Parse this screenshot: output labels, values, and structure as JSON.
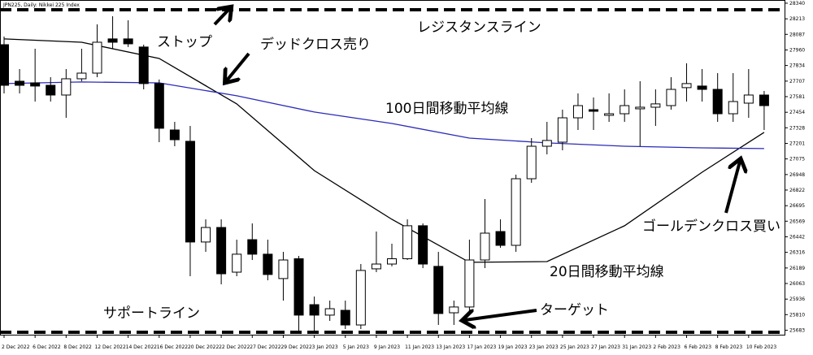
{
  "chart_data": {
    "type": "candlestick",
    "title": "JPN225, Daily: Nikkei 225 Index",
    "categories": [
      "2 Dec 2022",
      null,
      "6 Dec 2022",
      null,
      "8 Dec 2022",
      null,
      "12 Dec 2022",
      null,
      "14 Dec 2022",
      null,
      "16 Dec 2022",
      null,
      "20 Dec 2022",
      null,
      "22 Dec 2022",
      null,
      "27 Dec 2022",
      null,
      "29 Dec 2022",
      null,
      "3 Jan 2023",
      null,
      "5 Jan 2023",
      null,
      "9 Jan 2023",
      null,
      "11 Jan 2023",
      null,
      "13 Jan 2023",
      null,
      "17 Jan 2023",
      null,
      "19 Jan 2023",
      null,
      "23 Jan 2023",
      null,
      "25 Jan 2023",
      null,
      "27 Jan 2023",
      null,
      "31 Jan 2023",
      null,
      "2 Feb 2023",
      null,
      "6 Feb 2023",
      null,
      "8 Feb 2023",
      null,
      "10 Feb 2023",
      null
    ],
    "open": [
      28003,
      27706,
      27693,
      27673,
      27594,
      27726,
      27772,
      28050,
      28050,
      27984,
      27687,
      27310,
      27218,
      26400,
      26518,
      26155,
      26419,
      26301,
      26103,
      26264,
      25891,
      25806,
      25845,
      25726,
      26182,
      26221,
      26264,
      26532,
      26202,
      25825,
      25872,
      26254,
      26485,
      26373,
      26914,
      27178,
      27211,
      27409,
      27475,
      27429,
      27442,
      27482,
      27495,
      27508,
      27654,
      27667,
      27640,
      27442,
      27528,
      27594
    ],
    "high": [
      28069,
      27805,
      27970,
      27739,
      27805,
      27970,
      28168,
      28234,
      28201,
      28003,
      27720,
      27376,
      27343,
      26584,
      26584,
      26419,
      26551,
      26419,
      26320,
      26287,
      25957,
      25924,
      25924,
      26221,
      26485,
      26386,
      26584,
      26551,
      26320,
      25924,
      26419,
      26749,
      26584,
      26947,
      27244,
      27376,
      27475,
      27607,
      27574,
      27607,
      27640,
      27706,
      27640,
      27739,
      27852,
      27805,
      27772,
      27772,
      27805,
      27627
    ],
    "low": [
      27607,
      27607,
      27541,
      27541,
      27409,
      27706,
      27739,
      27970,
      27984,
      27640,
      27211,
      27178,
      26122,
      26320,
      26056,
      26122,
      26254,
      26089,
      25924,
      25673,
      25660,
      25759,
      25693,
      25693,
      26155,
      26202,
      26254,
      26188,
      25726,
      25726,
      25825,
      26188,
      26353,
      26320,
      26881,
      27112,
      27145,
      27310,
      27310,
      27376,
      27376,
      27178,
      27343,
      27475,
      27541,
      27541,
      27376,
      27376,
      27409,
      27310
    ],
    "close": [
      27673,
      27673,
      27667,
      27594,
      27726,
      27772,
      28023,
      28023,
      28010,
      27687,
      27324,
      27231,
      26400,
      26518,
      26142,
      26301,
      26301,
      26136,
      26254,
      25806,
      25806,
      25858,
      25726,
      26169,
      26221,
      26264,
      26532,
      26221,
      25819,
      25872,
      26254,
      26472,
      26373,
      26914,
      27178,
      27225,
      27409,
      27508,
      27462,
      27442,
      27508,
      27495,
      27522,
      27640,
      27687,
      27640,
      27442,
      27541,
      27594,
      27508
    ],
    "ma_lines": [
      {
        "color": "#000000",
        "x": [
          0,
          5,
          10,
          15,
          20,
          25,
          30,
          35,
          40,
          45,
          49
        ],
        "values": [
          28050,
          28023,
          27891,
          27522,
          26980,
          26584,
          26235,
          26241,
          26532,
          26967,
          27291
        ]
      },
      {
        "color": "#2b2bb8",
        "x": [
          0,
          5,
          10,
          15,
          20,
          25,
          30,
          35,
          40,
          45,
          49
        ],
        "values": [
          27687,
          27700,
          27693,
          27588,
          27456,
          27363,
          27244,
          27205,
          27178,
          27165,
          27159
        ]
      }
    ],
    "hlines": [
      28287,
      25667
    ],
    "ylim": [
      25647,
      28366
    ],
    "yticks": [
      28340,
      28213,
      28087,
      27960,
      27834,
      27707,
      27581,
      27454,
      27328,
      27201,
      27075,
      26948,
      26822,
      26695,
      26569,
      26442,
      26316,
      26189,
      26063,
      25936,
      25810,
      25683
    ],
    "annotations": [
      "ストップ",
      "デッドクロス売り",
      "レジスタンスライン",
      "100日間移動平均線",
      "ゴールデンクロス買い",
      "20日間移動平均線",
      "サポートライン",
      "ターゲット"
    ]
  }
}
